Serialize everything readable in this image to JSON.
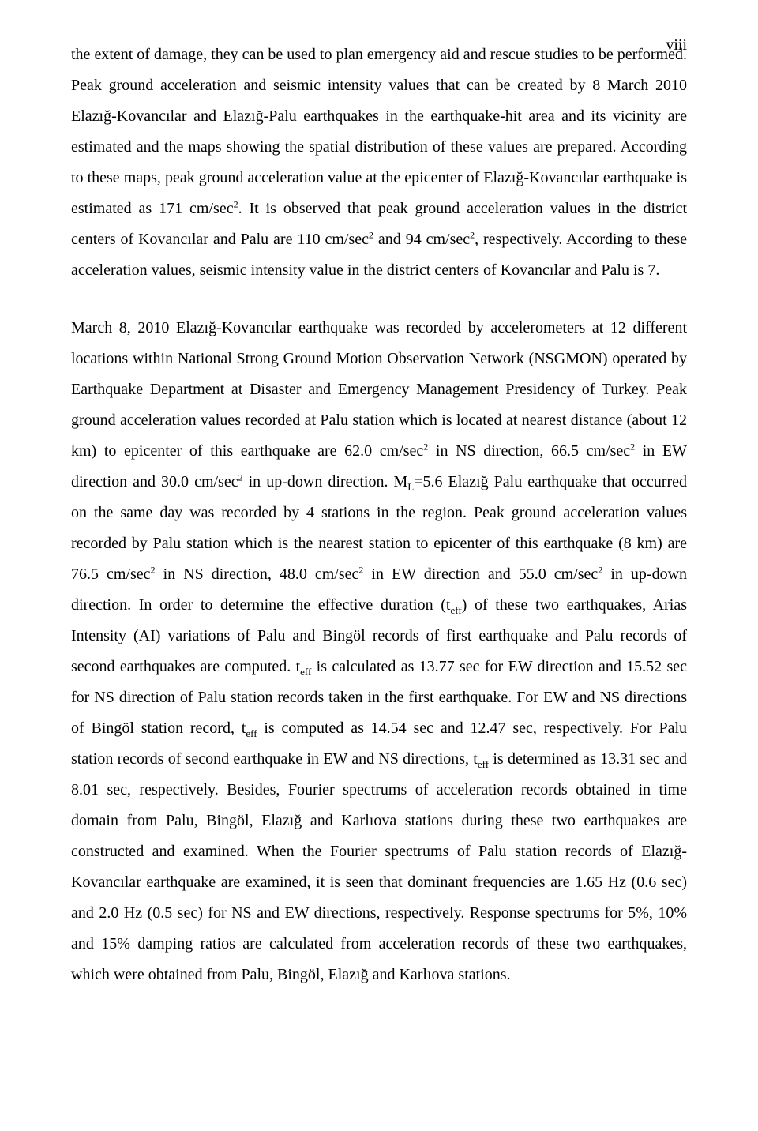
{
  "page_number": "viii",
  "paragraphs": {
    "p1a": "the extent of damage, they can be used to plan emergency aid and rescue studies to be performed. Peak ground acceleration and seismic intensity values that can be created by 8 March 2010 Elazığ-Kovancılar and Elazığ-Palu earthquakes in the earthquake-hit area and its vicinity are estimated and the maps showing the spatial distribution of these values are prepared. According to these maps, peak ground acceleration value at the epicenter of Elazığ-Kovancılar earthquake is estimated as 171 cm/sec",
    "sup2a": "2",
    "p1b": ". It is observed that peak ground acceleration values in the district centers of Kovancılar and Palu are 110 cm/sec",
    "sup2b": "2",
    "p1c": " and 94 cm/sec",
    "sup2c": "2",
    "p1d": ", respectively. According to these acceleration values, seismic intensity value in the district centers of Kovancılar and Palu is 7.",
    "p2a": "March 8, 2010 Elazığ-Kovancılar earthquake was recorded by accelerometers at 12 different locations within National Strong Ground Motion Observation Network (NSGMON) operated by Earthquake Department at Disaster and Emergency Management Presidency of Turkey. Peak ground acceleration values recorded at Palu station which is located at nearest distance (about 12 km) to epicenter of this earthquake are 62.0 cm/sec",
    "sup2d": "2",
    "p2b": " in NS direction, 66.5 cm/sec",
    "sup2e": "2",
    "p2c": " in EW direction and 30.0 cm/sec",
    "sup2f": "2",
    "p2d": " in up-down direction. M",
    "subL": "L",
    "p2e": "=5.6 Elazığ Palu earthquake that occurred on the same day was recorded by 4 stations in the region. Peak ground acceleration values recorded by Palu station which is the nearest station to epicenter of this earthquake (8 km) are 76.5 cm/sec",
    "sup2g": "2",
    "p2f": " in NS direction, 48.0 cm/sec",
    "sup2h": "2",
    "p2g": " in EW direction and 55.0 cm/sec",
    "sup2i": "2",
    "p2h": " in up-down direction. In order to determine the effective duration (t",
    "sub_eff1": "eff",
    "p2i": ") of these two earthquakes, Arias Intensity (AI) variations of Palu and Bingöl records of first earthquake and Palu records of second earthquakes are computed. t",
    "sub_eff2": "eff",
    "p2j": " is calculated as 13.77 sec for EW direction and 15.52 sec for NS direction of Palu station records taken in the first earthquake. For EW and NS directions of Bingöl station record, t",
    "sub_eff3": "eff",
    "p2k": " is computed as 14.54 sec and 12.47 sec, respectively. For Palu station records of second earthquake in EW and NS directions, t",
    "sub_eff4": "eff",
    "p2l": " is determined as 13.31 sec and 8.01 sec, respectively. Besides, Fourier spectrums of acceleration records obtained in time domain from Palu, Bingöl, Elazığ and Karlıova stations during these two earthquakes are constructed and examined. When the Fourier spectrums of Palu station records of Elazığ-Kovancılar earthquake are examined, it is seen that dominant frequencies are 1.65 Hz (0.6 sec) and 2.0 Hz (0.5 sec) for NS and EW directions, respectively. Response spectrums for 5%, 10% and 15% damping ratios are calculated from acceleration records of these two earthquakes, which were obtained from Palu, Bingöl, Elazığ and Karlıova stations."
  }
}
